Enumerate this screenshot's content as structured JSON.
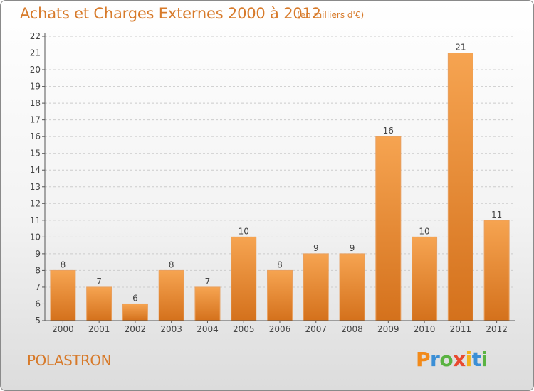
{
  "header": {
    "title": "Achats et Charges Externes 2000 à 2012",
    "unit_note": "(en milliers d'€)"
  },
  "footer": {
    "commune": "POLASTRON",
    "brand": [
      "P",
      "r",
      "o",
      "x",
      "i",
      "t",
      "i"
    ]
  },
  "colors": {
    "bar_top": "#f6a451",
    "bar_bottom": "#d4711c",
    "title": "#d77a2a",
    "grid": "#cccccc"
  },
  "chart_data": {
    "type": "bar",
    "title": "Achats et Charges Externes 2000 à 2012",
    "subtitle": "(en milliers d'€)",
    "xlabel": "",
    "ylabel": "",
    "categories": [
      "2000",
      "2001",
      "2002",
      "2003",
      "2004",
      "2005",
      "2006",
      "2007",
      "2008",
      "2009",
      "2010",
      "2011",
      "2012"
    ],
    "values": [
      8,
      7,
      6,
      8,
      7,
      10,
      8,
      9,
      9,
      16,
      10,
      21,
      11
    ],
    "ylim": [
      5,
      22
    ],
    "yticks": [
      5,
      6,
      7,
      8,
      9,
      10,
      11,
      12,
      13,
      14,
      15,
      16,
      17,
      18,
      19,
      20,
      21,
      22
    ],
    "grid": true,
    "legend": "none"
  }
}
